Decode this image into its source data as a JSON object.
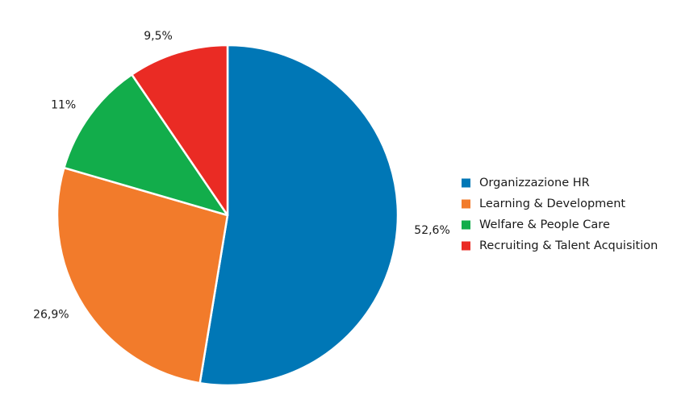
{
  "chart_data": {
    "type": "pie",
    "title": "",
    "start_angle_deg": 90,
    "direction": "clockwise",
    "legend_position": "right",
    "slices": [
      {
        "label": "Organizzazione HR",
        "value": 52.6,
        "display": "52,6%",
        "color": "#0077b6"
      },
      {
        "label": "Learning & Development",
        "value": 26.9,
        "display": "26,9%",
        "color": "#f27b2b"
      },
      {
        "label": "Welfare & People Care",
        "value": 11.0,
        "display": "11%",
        "color": "#12ad4b"
      },
      {
        "label": "Recruiting & Talent Acquisition",
        "value": 9.5,
        "display": "9,5%",
        "color": "#ea2b24"
      }
    ]
  }
}
